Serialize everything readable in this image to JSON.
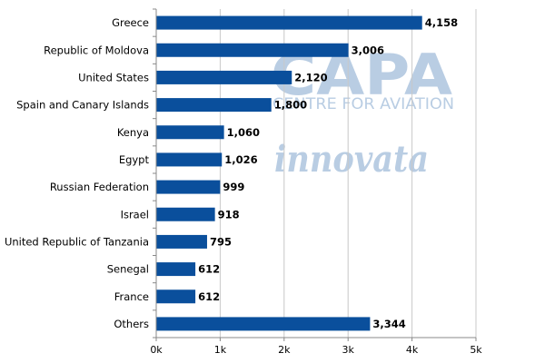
{
  "colors": {
    "bar": "#0a4f9c",
    "grid": "#c8c8c8",
    "axis": "#888888",
    "watermark": "#b9cde3"
  },
  "watermarks": {
    "brand": "CAPA",
    "brand_sub": "CENTRE FOR AVIATION",
    "partner": "innovata"
  },
  "chart_data": {
    "type": "bar",
    "orientation": "horizontal",
    "categories": [
      "Greece",
      "Republic of Moldova",
      "United States",
      "Spain and Canary Islands",
      "Kenya",
      "Egypt",
      "Russian Federation",
      "Israel",
      "United Republic of Tanzania",
      "Senegal",
      "France",
      "Others"
    ],
    "values": [
      4158,
      3006,
      2120,
      1800,
      1060,
      1026,
      999,
      918,
      795,
      612,
      612,
      3344
    ],
    "value_labels": [
      "4,158",
      "3,006",
      "2,120",
      "1,800",
      "1,060",
      "1,026",
      "999",
      "918",
      "795",
      "612",
      "612",
      "3,344"
    ],
    "xlim": [
      0,
      5000
    ],
    "xticks": [
      0,
      1000,
      2000,
      3000,
      4000,
      5000
    ],
    "xtick_labels": [
      "0k",
      "1k",
      "2k",
      "3k",
      "4k",
      "5k"
    ],
    "grid": true,
    "legend": "none"
  }
}
